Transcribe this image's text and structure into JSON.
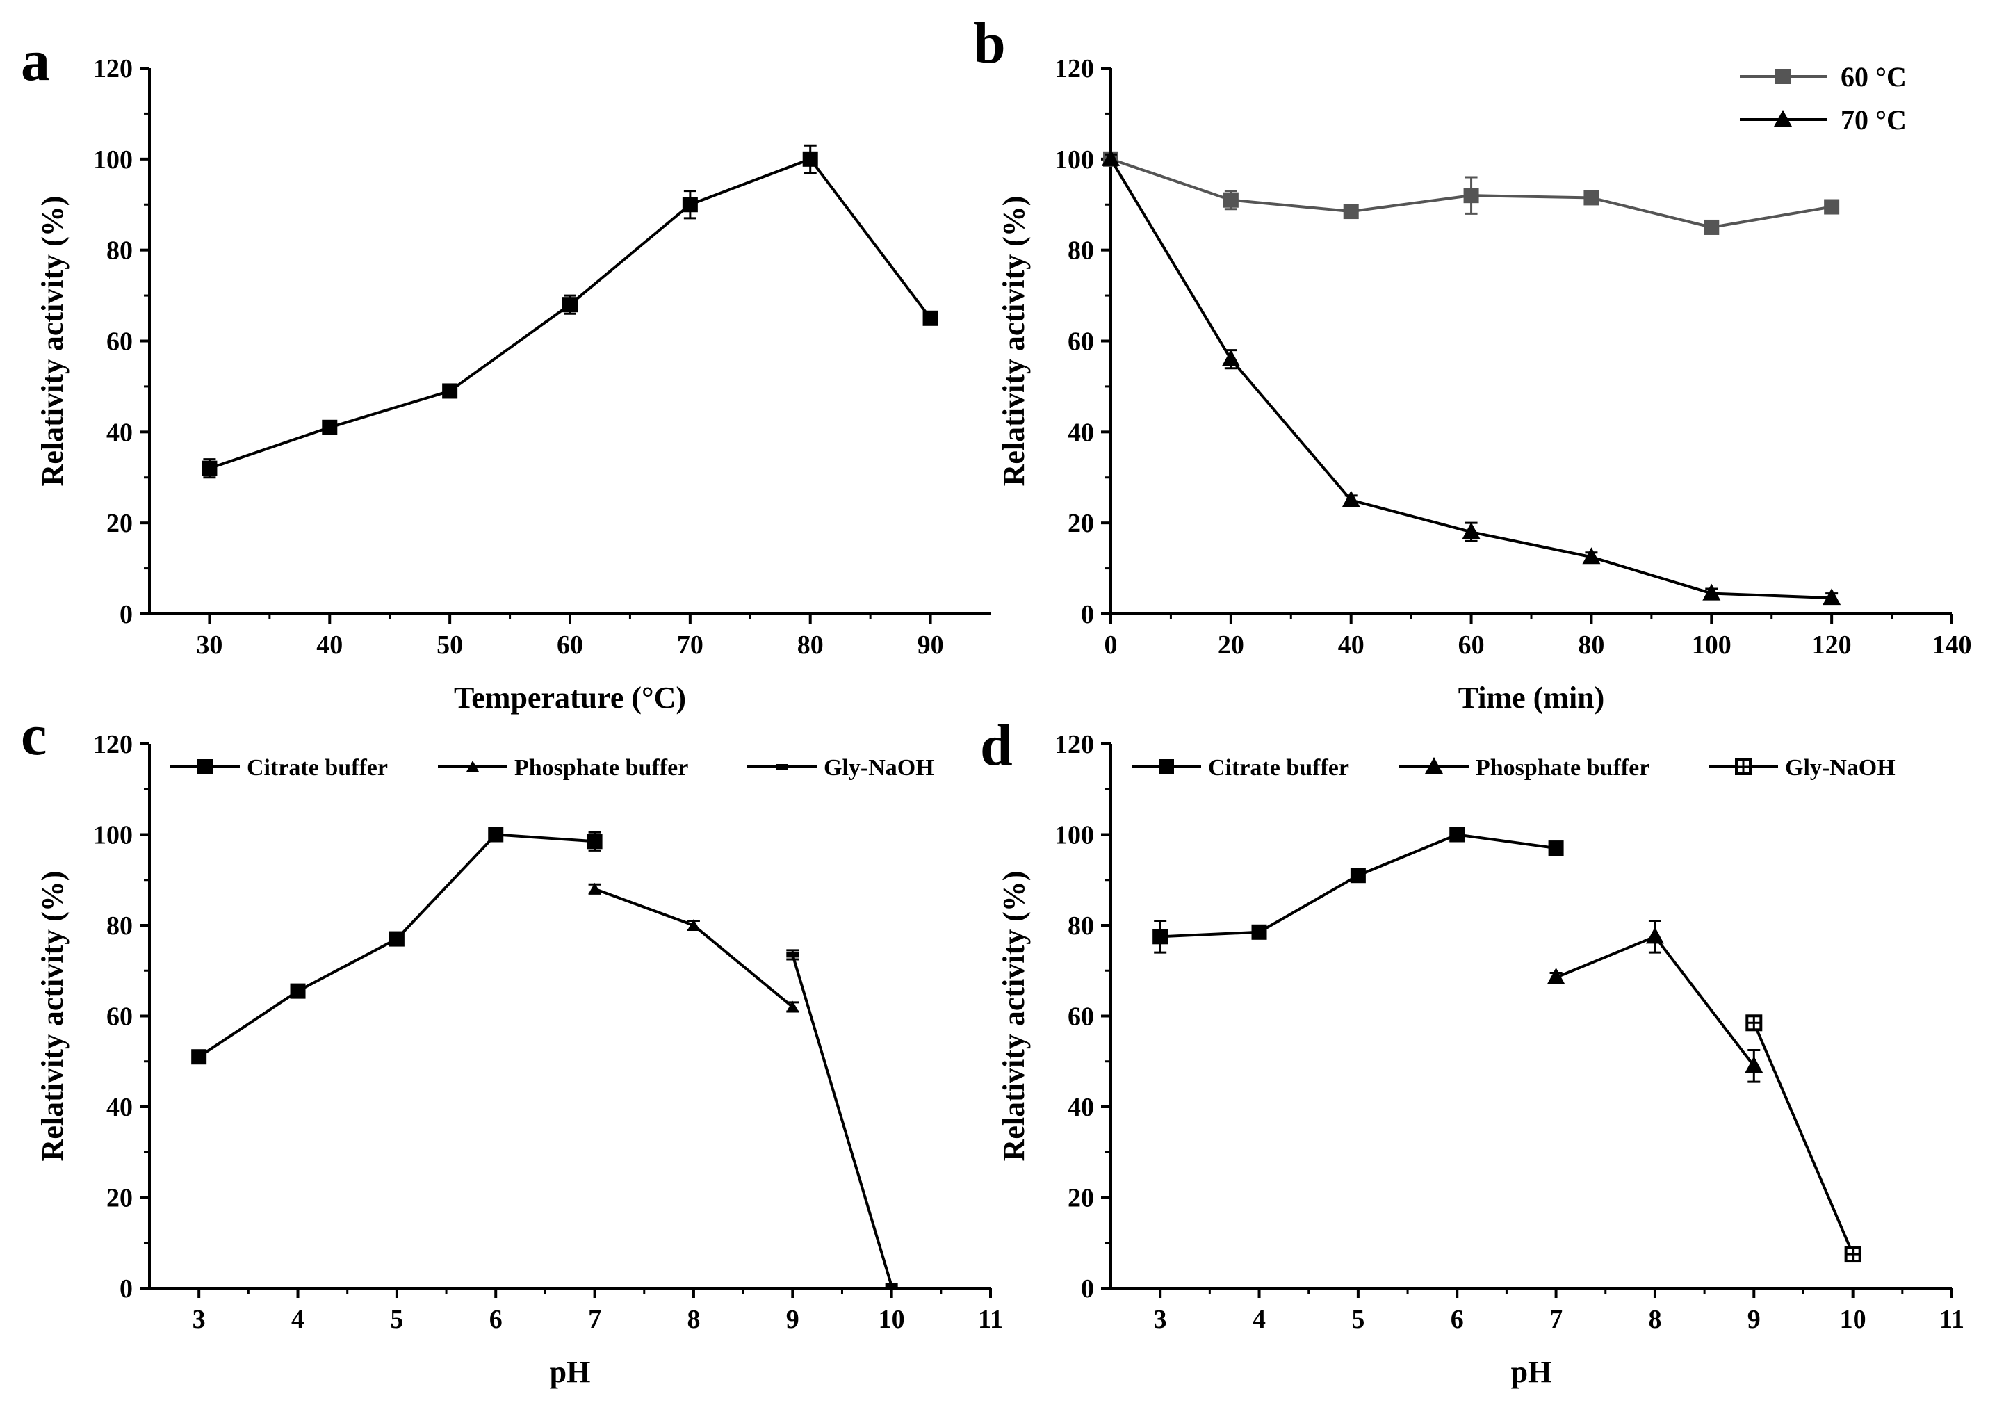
{
  "chart_data": [
    {
      "panel": "a",
      "type": "line",
      "xlabel": "Temperature (°C)",
      "ylabel": "Relativity activity (%)",
      "xlim": [
        25,
        95
      ],
      "ylim": [
        0,
        120
      ],
      "xticks": [
        30,
        40,
        50,
        60,
        70,
        80,
        90
      ],
      "yticks": [
        0,
        20,
        40,
        60,
        80,
        100,
        120
      ],
      "legend": null,
      "series": [
        {
          "name": "activity",
          "marker": "square",
          "color": "#000000",
          "x": [
            30,
            40,
            50,
            60,
            70,
            80,
            90
          ],
          "y": [
            32,
            41,
            49,
            68,
            90,
            100,
            65
          ],
          "err": [
            2,
            1,
            1,
            2,
            3,
            3,
            1
          ]
        }
      ]
    },
    {
      "panel": "b",
      "type": "line",
      "xlabel": "Time (min)",
      "ylabel": "Relativity activity (%)",
      "xlim": [
        0,
        140
      ],
      "ylim": [
        0,
        120
      ],
      "xticks": [
        0,
        20,
        40,
        60,
        80,
        100,
        120,
        140
      ],
      "yticks": [
        0,
        20,
        40,
        60,
        80,
        100,
        120
      ],
      "legend": {
        "position": "top-right",
        "layout": "vertical"
      },
      "series": [
        {
          "name": "60 °C",
          "marker": "square",
          "color": "#555555",
          "x": [
            0,
            20,
            40,
            60,
            80,
            100,
            120
          ],
          "y": [
            100,
            91,
            88.5,
            92,
            91.5,
            85,
            89.5
          ],
          "err": [
            1,
            2,
            1,
            4,
            1,
            1,
            1
          ]
        },
        {
          "name": "70 °C",
          "marker": "triangle",
          "color": "#000000",
          "x": [
            0,
            20,
            40,
            60,
            80,
            100,
            120
          ],
          "y": [
            100,
            56,
            25,
            18,
            12.5,
            4.5,
            3.5
          ],
          "err": [
            1,
            2,
            1,
            2,
            1,
            1,
            1
          ]
        }
      ]
    },
    {
      "panel": "c",
      "type": "line",
      "xlabel": "pH",
      "ylabel": "Relativity activity (%)",
      "xlim": [
        2.5,
        11
      ],
      "ylim": [
        0,
        120
      ],
      "xticks": [
        3,
        4,
        5,
        6,
        7,
        8,
        9,
        10,
        11
      ],
      "yticks": [
        0,
        20,
        40,
        60,
        80,
        100,
        120
      ],
      "legend": {
        "position": "top",
        "layout": "horizontal"
      },
      "series": [
        {
          "name": "Citrate buffer",
          "marker": "square",
          "color": "#000000",
          "x": [
            3,
            4,
            5,
            6,
            7
          ],
          "y": [
            51,
            65.5,
            77,
            100,
            98.5
          ],
          "err": [
            1,
            1,
            1,
            1,
            2
          ]
        },
        {
          "name": "Phosphate buffer",
          "marker": "small-triangle",
          "color": "#000000",
          "x": [
            7,
            8,
            9
          ],
          "y": [
            88,
            80,
            62
          ],
          "err": [
            1,
            1,
            1
          ]
        },
        {
          "name": "Gly-NaOH",
          "marker": "dash",
          "color": "#000000",
          "x": [
            9,
            10
          ],
          "y": [
            73.5,
            0.5
          ],
          "err": [
            1,
            0
          ]
        }
      ]
    },
    {
      "panel": "d",
      "type": "line",
      "xlabel": "pH",
      "ylabel": "Relativity activity (%)",
      "xlim": [
        2.5,
        11
      ],
      "ylim": [
        0,
        120
      ],
      "xticks": [
        3,
        4,
        5,
        6,
        7,
        8,
        9,
        10,
        11
      ],
      "yticks": [
        0,
        20,
        40,
        60,
        80,
        100,
        120
      ],
      "legend": {
        "position": "top",
        "layout": "horizontal"
      },
      "series": [
        {
          "name": "Citrate buffer",
          "marker": "square",
          "color": "#000000",
          "x": [
            3,
            4,
            5,
            6,
            7
          ],
          "y": [
            77.5,
            78.5,
            91,
            100,
            97
          ],
          "err": [
            3.5,
            1,
            1,
            1,
            1
          ]
        },
        {
          "name": "Phosphate buffer",
          "marker": "triangle",
          "color": "#000000",
          "x": [
            7,
            8,
            9
          ],
          "y": [
            68.5,
            77.5,
            49
          ],
          "err": [
            1,
            3.5,
            3.5
          ]
        },
        {
          "name": "Gly-NaOH",
          "marker": "crossed-square",
          "color": "#000000",
          "x": [
            9,
            10
          ],
          "y": [
            58.5,
            7.5
          ],
          "err": [
            1,
            1
          ]
        }
      ]
    }
  ]
}
